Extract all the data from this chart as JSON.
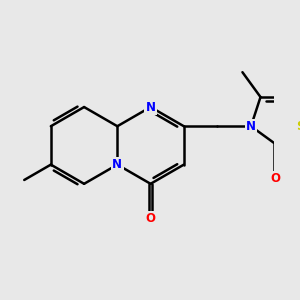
{
  "background_color": "#e8e8e8",
  "bond_color": "#000000",
  "N_color": "#0000ff",
  "O_color": "#ff0000",
  "S_color": "#cccc00",
  "line_width": 1.8,
  "figsize": [
    3.0,
    3.0
  ],
  "dpi": 100,
  "xlim": [
    0.0,
    3.0
  ],
  "ylim": [
    0.3,
    3.3
  ]
}
